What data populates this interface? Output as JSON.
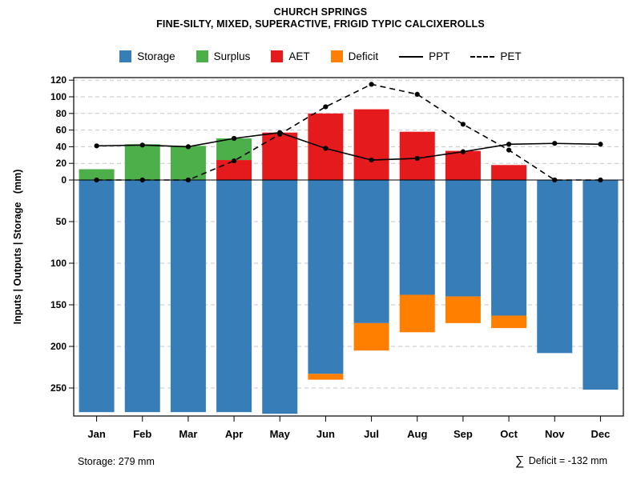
{
  "title": "CHURCH SPRINGS",
  "subtitle": "FINE-SILTY, MIXED, SUPERACTIVE, FRIGID TYPIC CALCIXEROLLS",
  "ylabel": "Inputs | Outputs | Storage   (mm)",
  "footer": {
    "storage_note": "Storage: 279 mm",
    "deficit_sigma": "∑",
    "deficit_text": " Deficit = -132 mm"
  },
  "colors": {
    "storage": "#377eb8",
    "surplus": "#4daf4a",
    "aet": "#e41a1c",
    "deficit": "#ff7f00",
    "line": "#000000",
    "grid": "#c6c6c6"
  },
  "legend": [
    {
      "label": "Storage",
      "type": "swatch",
      "color": "#377eb8"
    },
    {
      "label": "Surplus",
      "type": "swatch",
      "color": "#4daf4a"
    },
    {
      "label": "AET",
      "type": "swatch",
      "color": "#e41a1c"
    },
    {
      "label": "Deficit",
      "type": "swatch",
      "color": "#ff7f00"
    },
    {
      "label": "PPT",
      "type": "line",
      "dash": "solid",
      "color": "#000000"
    },
    {
      "label": "PET",
      "type": "line",
      "dash": "dashed",
      "color": "#000000"
    }
  ],
  "chart_data": {
    "type": "bar",
    "title": "CHURCH SPRINGS",
    "subtitle": "FINE-SILTY, MIXED, SUPERACTIVE, FRIGID TYPIC CALCIXEROLLS",
    "categories": [
      "Jan",
      "Feb",
      "Mar",
      "Apr",
      "May",
      "Jun",
      "Jul",
      "Aug",
      "Sep",
      "Oct",
      "Nov",
      "Dec"
    ],
    "units": "mm",
    "y_axis": {
      "label": "Inputs | Outputs | Storage (mm)",
      "up_ticks": [
        0,
        20,
        40,
        60,
        80,
        100,
        120
      ],
      "down_ticks": [
        50,
        100,
        150,
        200,
        250
      ],
      "up_max": 122,
      "down_max": 284,
      "grid": "dashed"
    },
    "series": [
      {
        "name": "Storage",
        "type": "bar",
        "direction": "down",
        "color": "#377eb8",
        "values": [
          279,
          279,
          279,
          279,
          281,
          233,
          172,
          138,
          140,
          163,
          208,
          252
        ]
      },
      {
        "name": "Deficit",
        "type": "bar",
        "direction": "down",
        "stacked_on": "Storage",
        "color": "#ff7f00",
        "values": [
          0,
          0,
          0,
          0,
          0,
          7,
          33,
          45,
          32,
          15,
          0,
          0
        ]
      },
      {
        "name": "AET",
        "type": "bar",
        "direction": "up",
        "color": "#e41a1c",
        "values": [
          0,
          0,
          0,
          24,
          57,
          80,
          85,
          58,
          35,
          18,
          0,
          0
        ]
      },
      {
        "name": "Surplus",
        "type": "bar",
        "direction": "up",
        "stacked_on": "AET",
        "color": "#4daf4a",
        "values": [
          13,
          43,
          41,
          26,
          0,
          0,
          0,
          0,
          0,
          0,
          0,
          0
        ]
      },
      {
        "name": "PPT",
        "type": "line",
        "style": "solid",
        "color": "#000000",
        "marker": "dot",
        "values": [
          41,
          42,
          40,
          50,
          57,
          38,
          24,
          26,
          34,
          43,
          44,
          43
        ]
      },
      {
        "name": "PET",
        "type": "line",
        "style": "dashed",
        "color": "#000000",
        "marker": "dot",
        "values": [
          0,
          0,
          0,
          23,
          55,
          88,
          115,
          103,
          67,
          36,
          0,
          0
        ]
      }
    ],
    "annotations": {
      "storage": "Storage: 279 mm",
      "total_deficit": "∑ Deficit = -132 mm"
    },
    "legend_position": "top"
  }
}
